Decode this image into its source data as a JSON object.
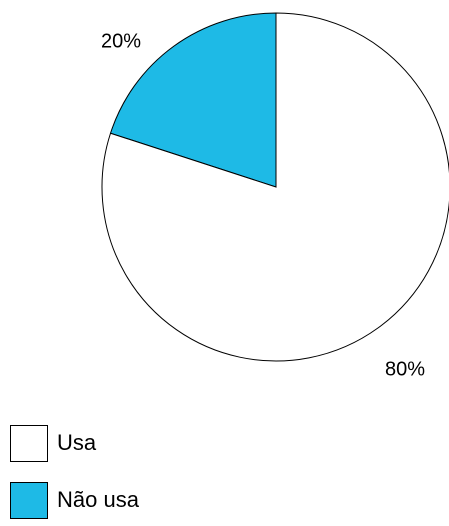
{
  "chart_data": {
    "type": "pie",
    "title": "",
    "start_angle_deg": 90,
    "direction": "counterclockwise",
    "slices": [
      {
        "name": "Não usa",
        "value": 20,
        "label": "20%",
        "color": "#1EBAE6"
      },
      {
        "name": "Usa",
        "value": 80,
        "label": "80%",
        "color": "#FFFFFF"
      }
    ],
    "legend": {
      "placement": "bottom-left",
      "entries": [
        {
          "label": "Usa",
          "color": "#FFFFFF"
        },
        {
          "label": "Não usa",
          "color": "#1EBAE6"
        }
      ]
    },
    "outline_color": "#000000"
  }
}
